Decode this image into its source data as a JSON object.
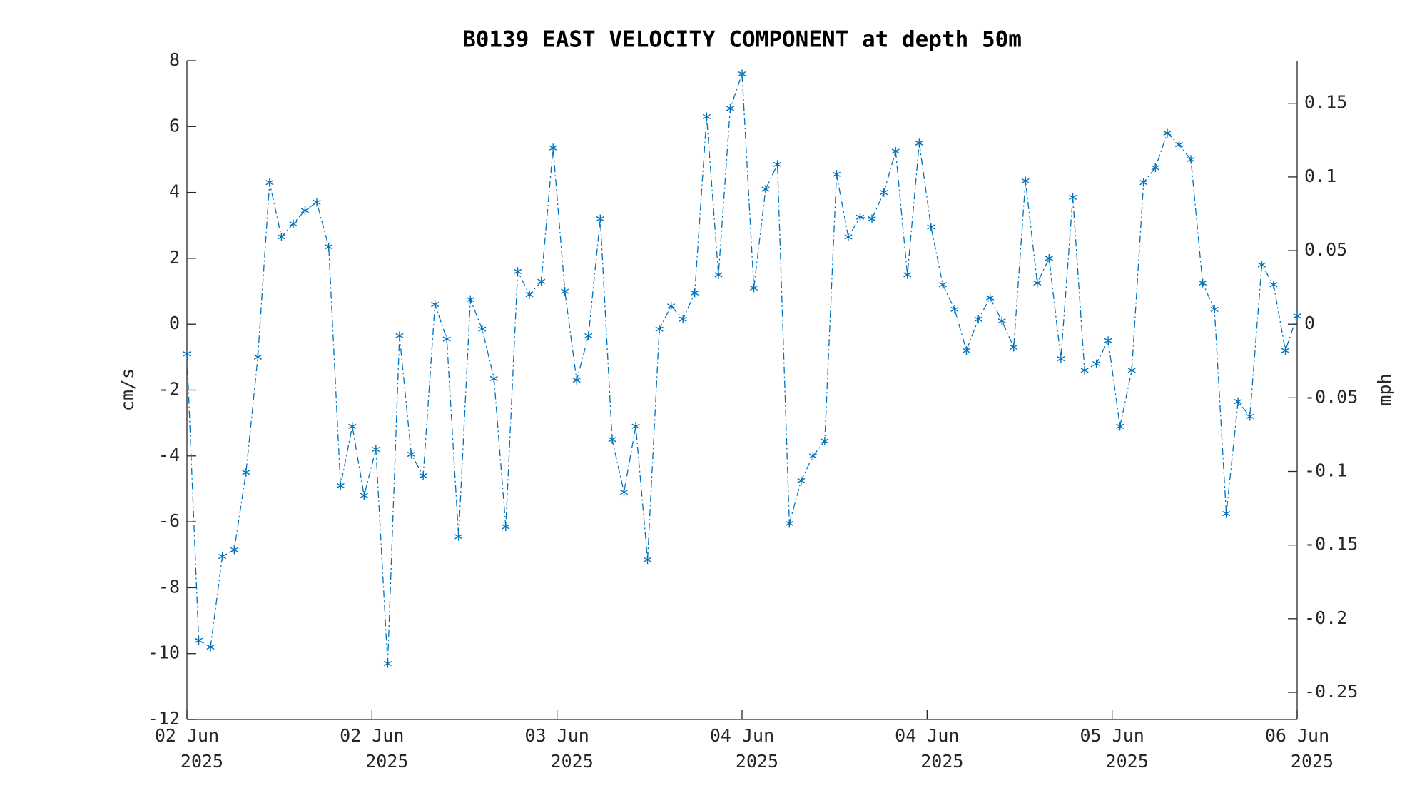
{
  "chart_data": {
    "type": "line",
    "title": "B0139 EAST VELOCITY COMPONENT at depth 50m",
    "ylabel": "cm/s",
    "y2label": "mph",
    "x": [
      0,
      1.02,
      2.04,
      3.06,
      4.09,
      5.11,
      6.13,
      7.15,
      8.17,
      9.19,
      10.21,
      11.23,
      12.26,
      13.28,
      14.3,
      15.32,
      16.34,
      17.36,
      18.38,
      19.4,
      20.43,
      21.45,
      22.47,
      23.49,
      24.51,
      25.53,
      26.55,
      27.57,
      28.6,
      29.62,
      30.64,
      31.66,
      32.68,
      33.7,
      34.72,
      35.74,
      36.77,
      37.79,
      38.81,
      39.83,
      40.85,
      41.87,
      42.89,
      43.91,
      44.94,
      45.96,
      46.98,
      48.0,
      49.02,
      50.04,
      51.06,
      52.09,
      53.11,
      54.13,
      55.15,
      56.17,
      57.19,
      58.21,
      59.23,
      60.26,
      61.28,
      62.3,
      63.32,
      64.34,
      65.36,
      66.38,
      67.4,
      68.43,
      69.45,
      70.47,
      71.49,
      72.51,
      73.53,
      74.55,
      75.57,
      76.6,
      77.62,
      78.64,
      79.66,
      80.68,
      81.7,
      82.72,
      83.74,
      84.77,
      85.79,
      86.81,
      87.83,
      88.85,
      89.87,
      90.89,
      91.91,
      92.94,
      93.96,
      94.98,
      96.0
    ],
    "series": [
      {
        "name": "East velocity",
        "color": "#0072bd",
        "values": [
          -0.9,
          -9.6,
          -9.8,
          -7.05,
          -6.85,
          -4.5,
          -1.0,
          4.3,
          2.65,
          3.05,
          3.45,
          3.7,
          2.35,
          -4.9,
          -3.1,
          -5.2,
          -3.8,
          -10.3,
          -0.35,
          -3.95,
          -4.6,
          0.6,
          -0.45,
          -6.45,
          0.75,
          -0.15,
          -1.65,
          -6.15,
          1.6,
          0.9,
          1.3,
          5.35,
          1.0,
          -1.7,
          -0.35,
          3.2,
          -3.5,
          -5.1,
          -3.1,
          -7.15,
          -0.15,
          0.55,
          0.15,
          0.95,
          6.3,
          1.5,
          6.55,
          7.6,
          1.1,
          4.1,
          4.85,
          -6.05,
          -4.75,
          -4.0,
          -3.55,
          4.55,
          2.65,
          3.25,
          3.2,
          4.0,
          5.25,
          1.5,
          5.5,
          2.95,
          1.2,
          0.45,
          -0.8,
          0.15,
          0.8,
          0.1,
          -0.7,
          4.35,
          1.25,
          2.0,
          -1.05,
          3.85,
          -1.4,
          -1.2,
          -0.5,
          -3.1,
          -1.4,
          4.3,
          4.75,
          5.8,
          5.45,
          5.0,
          1.25,
          0.45,
          -5.75,
          -2.35,
          -2.8,
          1.8,
          1.2,
          -0.8,
          0.25
        ]
      }
    ],
    "xlim": [
      0,
      96
    ],
    "xticks": [
      {
        "value": 0,
        "label": "02 Jun\n2025"
      },
      {
        "value": 16,
        "label": "02 Jun\n2025"
      },
      {
        "value": 32,
        "label": "03 Jun\n2025"
      },
      {
        "value": 48,
        "label": "04 Jun\n2025"
      },
      {
        "value": 64,
        "label": "04 Jun\n2025"
      },
      {
        "value": 80,
        "label": "05 Jun\n2025"
      },
      {
        "value": 96,
        "label": "06 Jun\n2025"
      }
    ],
    "ylim": [
      -12,
      8
    ],
    "yticks": [
      -12,
      -10,
      -8,
      -6,
      -4,
      -2,
      0,
      2,
      4,
      6,
      8
    ],
    "y2lim": [
      -0.26843,
      0.17896
    ],
    "y2ticks": [
      -0.25,
      -0.2,
      -0.15,
      -0.1,
      -0.05,
      0,
      0.05,
      0.1,
      0.15
    ],
    "grid": false,
    "marker": "asterisk"
  }
}
